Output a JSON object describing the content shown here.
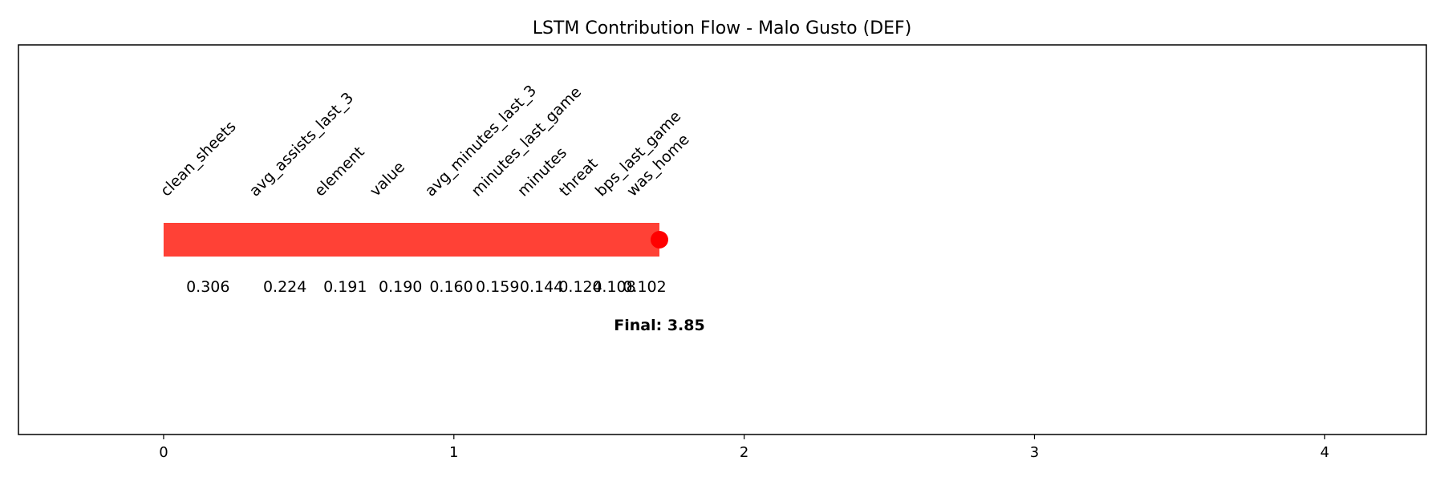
{
  "chart_data": {
    "type": "bar",
    "title": "LSTM Contribution Flow - Malo Gusto (DEF)",
    "xlabel": "",
    "ylabel": "",
    "xlim": [
      -0.5,
      4.35
    ],
    "xticks": [
      "0",
      "1",
      "2",
      "3",
      "4"
    ],
    "grid": false,
    "bar_color": "#ff4136",
    "marker_color": "#ff0000",
    "features": [
      {
        "name": "clean_sheets",
        "value": 0.306,
        "label": "0.306"
      },
      {
        "name": "avg_assists_last_3",
        "value": 0.224,
        "label": "0.224"
      },
      {
        "name": "element",
        "value": 0.191,
        "label": "0.191"
      },
      {
        "name": "value",
        "value": 0.19,
        "label": "0.190"
      },
      {
        "name": "avg_minutes_last_3",
        "value": 0.16,
        "label": "0.160"
      },
      {
        "name": "minutes_last_game",
        "value": 0.159,
        "label": "0.159"
      },
      {
        "name": "minutes",
        "value": 0.144,
        "label": "0.144"
      },
      {
        "name": "threat",
        "value": 0.124,
        "label": "0.124"
      },
      {
        "name": "bps_last_game",
        "value": 0.108,
        "label": "0.108"
      },
      {
        "name": "was_home",
        "value": 0.102,
        "label": "0.102"
      }
    ],
    "bar_start": 0,
    "bar_end": 1.708,
    "final_label": "Final: 3.85"
  }
}
